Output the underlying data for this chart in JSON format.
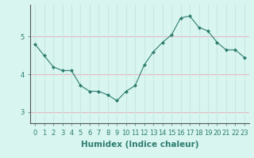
{
  "x": [
    0,
    1,
    2,
    3,
    4,
    5,
    6,
    7,
    8,
    9,
    10,
    11,
    12,
    13,
    14,
    15,
    16,
    17,
    18,
    19,
    20,
    21,
    22,
    23
  ],
  "y": [
    4.8,
    4.5,
    4.2,
    4.1,
    4.1,
    3.7,
    3.55,
    3.55,
    3.45,
    3.3,
    3.55,
    3.7,
    4.25,
    4.6,
    4.85,
    5.05,
    5.5,
    5.55,
    5.25,
    5.15,
    4.85,
    4.65,
    4.65,
    4.45
  ],
  "line_color": "#2e7d6e",
  "marker": "D",
  "marker_size": 2,
  "bg_color": "#d8f5f0",
  "grid_color_h": "#e8b8c0",
  "grid_color_v": "#c8e8e0",
  "xlabel": "Humidex (Indice chaleur)",
  "xlabel_fontsize": 7.5,
  "tick_fontsize": 6,
  "yticks": [
    3,
    4,
    5
  ],
  "ylim": [
    2.7,
    5.85
  ],
  "xlim": [
    -0.5,
    23.5
  ]
}
